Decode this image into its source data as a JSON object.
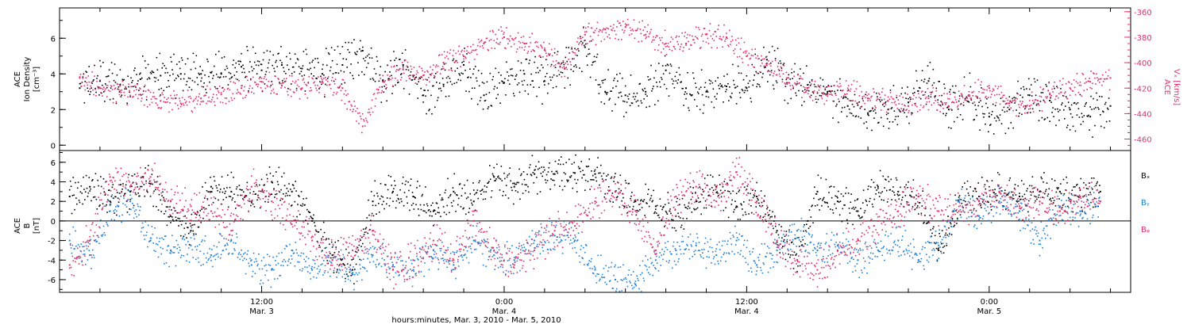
{
  "chart_data": [
    {
      "panel": "density-velocity",
      "type": "scatter",
      "x_unit": "hours since Mar. 3, 2010 00:00",
      "xlim": [
        2.0,
        55.0
      ],
      "left_axis": {
        "label_lines": [
          "ACE",
          "Ion Density",
          "[cm⁻³]"
        ],
        "ylim": [
          -0.3,
          7.7
        ],
        "ticks": [
          0,
          2,
          4,
          6
        ],
        "color": "#000000"
      },
      "right_axis": {
        "label_lines": [
          "ACE",
          "Vₓ [km/s]"
        ],
        "ylim": [
          -469,
          -357
        ],
        "ticks": [
          -360,
          -380,
          -400,
          -420,
          -440,
          -460
        ],
        "color": "#e0306a"
      },
      "series": [
        {
          "axis": "left",
          "color": "#000000",
          "points": [
            [
              3,
              3.2
            ],
            [
              4,
              3.6
            ],
            [
              5,
              3.4
            ],
            [
              6,
              3.7
            ],
            [
              7,
              3.9
            ],
            [
              8,
              4.0
            ],
            [
              9,
              4.0
            ],
            [
              10,
              4.0
            ],
            [
              11,
              4.4
            ],
            [
              12,
              4.2
            ],
            [
              13,
              4.5
            ],
            [
              14,
              4.3
            ],
            [
              15,
              4.0
            ],
            [
              16,
              4.5
            ],
            [
              17,
              5.3
            ],
            [
              18,
              3.6
            ],
            [
              19,
              4.5
            ],
            [
              20,
              2.8
            ],
            [
              21,
              3.4
            ],
            [
              22,
              4.5
            ],
            [
              23,
              2.8
            ],
            [
              24,
              3.5
            ],
            [
              25,
              4.0
            ],
            [
              26,
              3.6
            ],
            [
              27,
              4.3
            ],
            [
              28,
              5.5
            ],
            [
              29,
              3.0
            ],
            [
              30,
              2.8
            ],
            [
              31,
              3.0
            ],
            [
              32,
              4.2
            ],
            [
              33,
              3.2
            ],
            [
              34,
              3.0
            ],
            [
              35,
              3.3
            ],
            [
              36,
              3.2
            ],
            [
              37,
              4.8
            ],
            [
              38,
              3.5
            ],
            [
              39,
              3.2
            ],
            [
              40,
              3.0
            ],
            [
              41,
              2.2
            ],
            [
              42,
              1.8
            ],
            [
              43,
              2.0
            ],
            [
              44,
              2.4
            ],
            [
              45,
              3.6
            ],
            [
              46,
              2.0
            ],
            [
              47,
              2.8
            ],
            [
              48,
              1.6
            ],
            [
              49,
              2.0
            ],
            [
              50,
              2.8
            ],
            [
              51,
              2.5
            ],
            [
              52,
              2.0
            ],
            [
              53,
              1.6
            ],
            [
              54,
              2.2
            ]
          ]
        },
        {
          "axis": "right",
          "color": "#e0306a",
          "points": [
            [
              3,
              -412
            ],
            [
              4,
              -420
            ],
            [
              5,
              -422
            ],
            [
              6,
              -425
            ],
            [
              7,
              -430
            ],
            [
              8,
              -432
            ],
            [
              9,
              -428
            ],
            [
              10,
              -425
            ],
            [
              11,
              -420
            ],
            [
              12,
              -415
            ],
            [
              13,
              -418
            ],
            [
              14,
              -420
            ],
            [
              15,
              -415
            ],
            [
              16,
              -420
            ],
            [
              17,
              -450
            ],
            [
              18,
              -415
            ],
            [
              19,
              -405
            ],
            [
              20,
              -410
            ],
            [
              21,
              -400
            ],
            [
              22,
              -395
            ],
            [
              23,
              -385
            ],
            [
              24,
              -380
            ],
            [
              25,
              -385
            ],
            [
              26,
              -390
            ],
            [
              27,
              -405
            ],
            [
              28,
              -378
            ],
            [
              29,
              -374
            ],
            [
              30,
              -372
            ],
            [
              31,
              -378
            ],
            [
              32,
              -385
            ],
            [
              33,
              -385
            ],
            [
              34,
              -378
            ],
            [
              35,
              -380
            ],
            [
              36,
              -395
            ],
            [
              37,
              -402
            ],
            [
              38,
              -412
            ],
            [
              39,
              -420
            ],
            [
              40,
              -425
            ],
            [
              41,
              -422
            ],
            [
              42,
              -428
            ],
            [
              43,
              -430
            ],
            [
              44,
              -434
            ],
            [
              45,
              -428
            ],
            [
              46,
              -434
            ],
            [
              47,
              -426
            ],
            [
              48,
              -420
            ],
            [
              49,
              -432
            ],
            [
              50,
              -434
            ],
            [
              51,
              -425
            ],
            [
              52,
              -420
            ],
            [
              53,
              -415
            ],
            [
              54,
              -412
            ]
          ]
        }
      ]
    },
    {
      "panel": "magnetic-field",
      "type": "scatter",
      "x_unit": "hours since Mar. 3, 2010 00:00",
      "xlim": [
        2.0,
        55.0
      ],
      "y_axis": {
        "label_lines": [
          "ACE",
          "B",
          "[nT]"
        ],
        "ylim": [
          -7.3,
          7.2
        ],
        "ticks": [
          -6,
          -4,
          -2,
          0,
          2,
          4,
          6
        ]
      },
      "zero_line": true,
      "series": [
        {
          "name": "Bₓ",
          "color": "#000000",
          "points": [
            [
              2.5,
              2.5
            ],
            [
              3.5,
              3.5
            ],
            [
              4.5,
              2.0
            ],
            [
              5.5,
              3.0
            ],
            [
              6.5,
              3.8
            ],
            [
              7.5,
              0.5
            ],
            [
              8.5,
              -1.0
            ],
            [
              9.5,
              3.5
            ],
            [
              10.5,
              3.0
            ],
            [
              11.5,
              2.0
            ],
            [
              12.5,
              4.0
            ],
            [
              13.5,
              3.0
            ],
            [
              14.5,
              0.0
            ],
            [
              15.5,
              -3.5
            ],
            [
              16.5,
              -5.0
            ],
            [
              17.5,
              2.0
            ],
            [
              18.5,
              3.0
            ],
            [
              19.5,
              2.5
            ],
            [
              20.5,
              1.0
            ],
            [
              21.5,
              3.0
            ],
            [
              22.5,
              2.0
            ],
            [
              23.5,
              4.5
            ],
            [
              24.5,
              3.5
            ],
            [
              25.5,
              4.8
            ],
            [
              26.5,
              4.8
            ],
            [
              27.5,
              4.9
            ],
            [
              28.5,
              4.8
            ],
            [
              29.5,
              3.0
            ],
            [
              30.5,
              2.0
            ],
            [
              31.5,
              1.5
            ],
            [
              32.5,
              0.5
            ],
            [
              33.5,
              2.0
            ],
            [
              34.5,
              3.5
            ],
            [
              35.5,
              1.5
            ],
            [
              36.5,
              2.5
            ],
            [
              37.5,
              -1.0
            ],
            [
              38.5,
              -4.0
            ],
            [
              39.5,
              3.0
            ],
            [
              40.5,
              2.0
            ],
            [
              41.5,
              1.0
            ],
            [
              42.5,
              3.5
            ],
            [
              43.5,
              3.0
            ],
            [
              44.5,
              2.5
            ],
            [
              45.5,
              -3.0
            ],
            [
              46.5,
              2.0
            ],
            [
              47.5,
              2.5
            ],
            [
              48.5,
              3.0
            ],
            [
              49.5,
              2.5
            ],
            [
              50.5,
              3.0
            ],
            [
              51.5,
              3.0
            ],
            [
              52.5,
              2.5
            ],
            [
              53.5,
              3.0
            ]
          ]
        },
        {
          "name": "Bᵧ",
          "color": "#1f7fd6",
          "points": [
            [
              2.5,
              -2.0
            ],
            [
              3.5,
              -3.5
            ],
            [
              4.5,
              1.0
            ],
            [
              5.5,
              2.0
            ],
            [
              6.5,
              -2.0
            ],
            [
              7.5,
              -3.0
            ],
            [
              8.5,
              -2.5
            ],
            [
              9.5,
              -3.5
            ],
            [
              10.5,
              -2.0
            ],
            [
              11.5,
              -4.5
            ],
            [
              12.5,
              -5.0
            ],
            [
              13.5,
              -3.0
            ],
            [
              14.5,
              -5.0
            ],
            [
              15.5,
              -4.0
            ],
            [
              16.5,
              -5.5
            ],
            [
              17.5,
              -3.5
            ],
            [
              18.5,
              -4.5
            ],
            [
              19.5,
              -5.0
            ],
            [
              20.5,
              -3.0
            ],
            [
              21.5,
              -4.5
            ],
            [
              22.5,
              -2.0
            ],
            [
              23.5,
              -3.5
            ],
            [
              24.5,
              -4.0
            ],
            [
              25.5,
              -2.0
            ],
            [
              26.5,
              -1.5
            ],
            [
              27.5,
              -2.0
            ],
            [
              28.5,
              -5.0
            ],
            [
              29.5,
              -6.0
            ],
            [
              30.5,
              -6.5
            ],
            [
              31.5,
              -4.0
            ],
            [
              32.5,
              -3.0
            ],
            [
              33.5,
              -2.5
            ],
            [
              34.5,
              -3.5
            ],
            [
              35.5,
              -2.0
            ],
            [
              36.5,
              -4.5
            ],
            [
              37.5,
              -3.0
            ],
            [
              38.5,
              -1.0
            ],
            [
              39.5,
              -3.0
            ],
            [
              40.5,
              -2.5
            ],
            [
              41.5,
              -4.0
            ],
            [
              42.5,
              -3.0
            ],
            [
              43.5,
              -2.0
            ],
            [
              44.5,
              -4.0
            ],
            [
              45.5,
              -2.5
            ],
            [
              46.5,
              2.0
            ],
            [
              47.5,
              0.5
            ],
            [
              48.5,
              2.0
            ],
            [
              49.5,
              1.0
            ],
            [
              50.5,
              -2.0
            ],
            [
              51.5,
              1.5
            ],
            [
              52.5,
              1.0
            ],
            [
              53.5,
              2.0
            ]
          ]
        },
        {
          "name": "Bᵩ",
          "color": "#e0306a",
          "points": [
            [
              2.5,
              -4.5
            ],
            [
              3.5,
              -2.0
            ],
            [
              4.5,
              4.5
            ],
            [
              5.5,
              3.5
            ],
            [
              6.5,
              4.5
            ],
            [
              7.5,
              2.0
            ],
            [
              8.5,
              1.5
            ],
            [
              9.5,
              1.0
            ],
            [
              10.5,
              -1.0
            ],
            [
              11.5,
              3.5
            ],
            [
              12.5,
              2.0
            ],
            [
              13.5,
              0.0
            ],
            [
              14.5,
              -2.0
            ],
            [
              15.5,
              -4.0
            ],
            [
              16.5,
              -3.0
            ],
            [
              17.5,
              -1.0
            ],
            [
              18.5,
              -5.0
            ],
            [
              19.5,
              -4.0
            ],
            [
              20.5,
              -2.0
            ],
            [
              21.5,
              -4.0
            ],
            [
              22.5,
              0.0
            ],
            [
              23.5,
              -3.0
            ],
            [
              24.5,
              -4.5
            ],
            [
              25.5,
              -3.0
            ],
            [
              26.5,
              -1.0
            ],
            [
              27.5,
              -0.5
            ],
            [
              28.5,
              2.0
            ],
            [
              29.5,
              3.0
            ],
            [
              30.5,
              1.0
            ],
            [
              31.5,
              -3.0
            ],
            [
              32.5,
              2.5
            ],
            [
              33.5,
              3.5
            ],
            [
              34.5,
              2.0
            ],
            [
              35.5,
              5.0
            ],
            [
              36.5,
              2.0
            ],
            [
              37.5,
              -2.0
            ],
            [
              38.5,
              -4.0
            ],
            [
              39.5,
              -5.0
            ],
            [
              40.5,
              -3.0
            ],
            [
              41.5,
              -2.0
            ],
            [
              42.5,
              0.0
            ],
            [
              43.5,
              1.0
            ],
            [
              44.5,
              2.5
            ],
            [
              45.5,
              1.0
            ],
            [
              46.5,
              1.0
            ],
            [
              47.5,
              2.0
            ],
            [
              48.5,
              3.0
            ],
            [
              49.5,
              1.5
            ],
            [
              50.5,
              2.0
            ],
            [
              51.5,
              1.0
            ],
            [
              52.5,
              2.5
            ],
            [
              53.5,
              2.0
            ]
          ]
        }
      ]
    }
  ],
  "time_axis": {
    "ticks": [
      {
        "hours": 12,
        "time": "12:00",
        "date": "Mar. 3"
      },
      {
        "hours": 24,
        "time": "0:00",
        "date": "Mar. 4"
      },
      {
        "hours": 36,
        "time": "12:00",
        "date": "Mar. 4"
      },
      {
        "hours": 48,
        "time": "0:00",
        "date": "Mar. 5"
      }
    ],
    "label": "hours:minutes, Mar.  3, 2010 - Mar.  5, 2010"
  }
}
